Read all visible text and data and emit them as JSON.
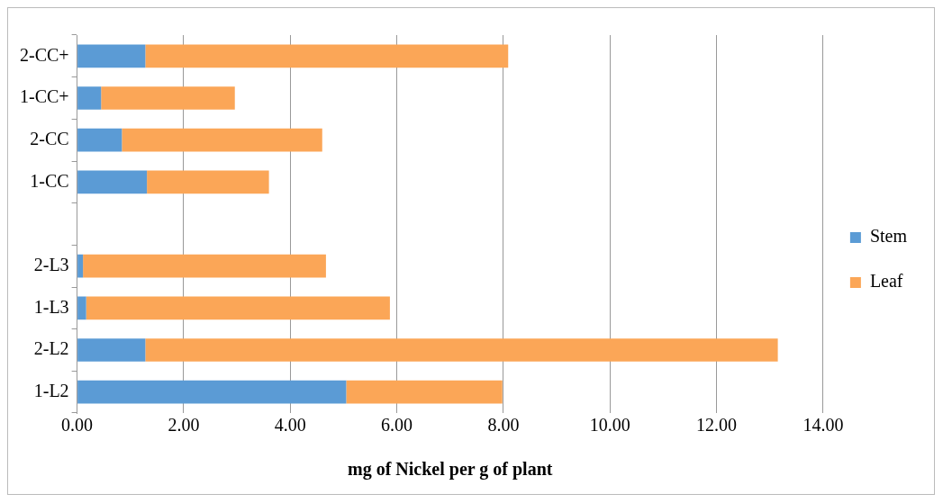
{
  "chart_data": {
    "type": "bar",
    "orientation": "horizontal",
    "stacked": true,
    "categories": [
      "2-CC+",
      "1-CC+",
      "2-CC",
      "1-CC",
      null,
      "2-L3",
      "1-L3",
      "2-L2",
      "1-L2"
    ],
    "series": [
      {
        "name": "Stem",
        "color": "#5b9bd5",
        "values": [
          1.28,
          0.45,
          0.84,
          1.31,
          null,
          0.11,
          0.17,
          1.28,
          5.05
        ]
      },
      {
        "name": "Leaf",
        "color": "#fba657",
        "values": [
          6.81,
          2.51,
          3.76,
          2.29,
          null,
          4.56,
          5.7,
          11.87,
          2.93
        ]
      }
    ],
    "xlabel": "mg of Nickel per g of plant",
    "xlim": [
      0,
      14
    ],
    "xticks": [
      {
        "value": 0,
        "label": "0.00"
      },
      {
        "value": 2,
        "label": "2.00"
      },
      {
        "value": 4,
        "label": "4.00"
      },
      {
        "value": 6,
        "label": "6.00"
      },
      {
        "value": 8,
        "label": "8.00"
      },
      {
        "value": 10,
        "label": "10.00"
      },
      {
        "value": 12,
        "label": "12.00"
      },
      {
        "value": 14,
        "label": "14.00"
      }
    ],
    "grid": "x",
    "legend": "right"
  }
}
